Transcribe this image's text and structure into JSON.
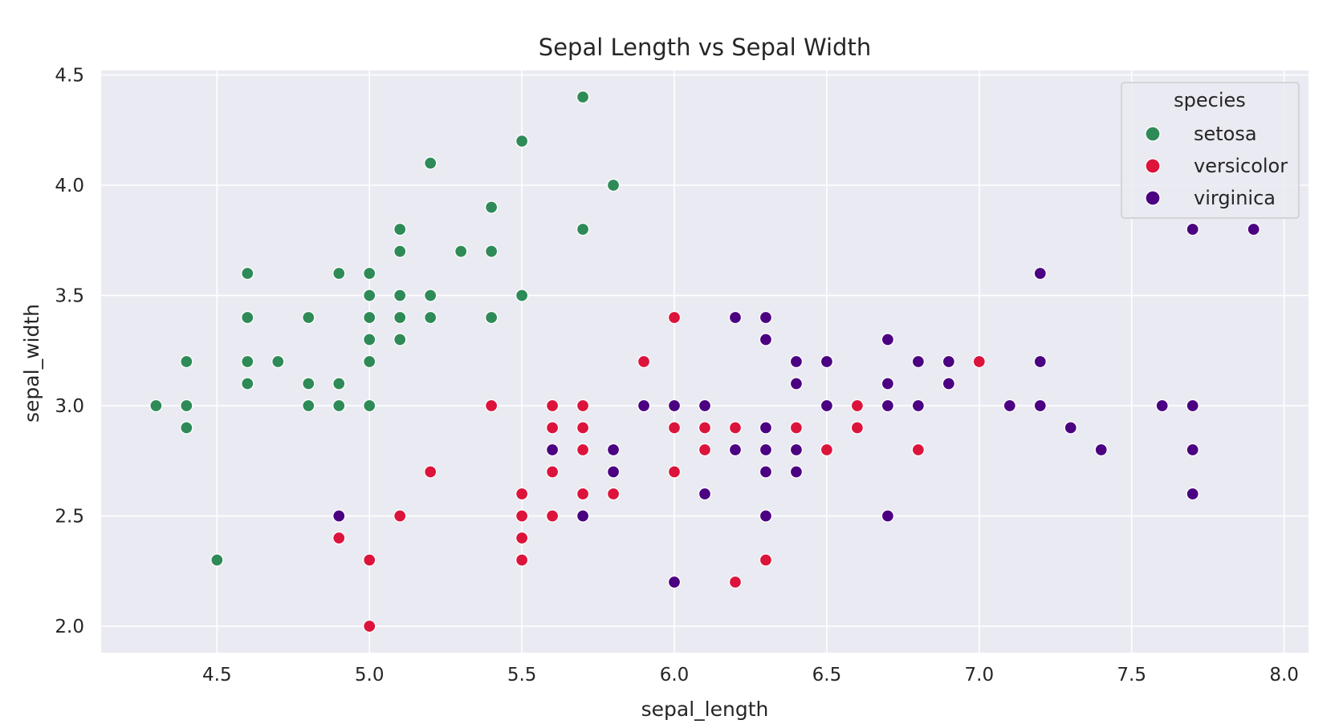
{
  "chart_data": {
    "type": "scatter",
    "title": "Sepal Length vs Sepal Width",
    "xlabel": "sepal_length",
    "ylabel": "sepal_width",
    "xlim": [
      4.12,
      8.08
    ],
    "ylim": [
      1.88,
      4.52
    ],
    "xticks": [
      "4.5",
      "5.0",
      "5.5",
      "6.0",
      "6.5",
      "7.0",
      "7.5",
      "8.0"
    ],
    "yticks": [
      "2.0",
      "2.5",
      "3.0",
      "3.5",
      "4.0",
      "4.5"
    ],
    "grid": true,
    "legend": {
      "title": "species",
      "placement": "upper-right"
    },
    "series": [
      {
        "name": "setosa",
        "color": "#2e8b57",
        "points": [
          [
            5.1,
            3.5
          ],
          [
            4.9,
            3.0
          ],
          [
            4.7,
            3.2
          ],
          [
            4.6,
            3.1
          ],
          [
            5.0,
            3.6
          ],
          [
            5.4,
            3.9
          ],
          [
            4.6,
            3.4
          ],
          [
            5.0,
            3.4
          ],
          [
            4.4,
            2.9
          ],
          [
            4.9,
            3.1
          ],
          [
            5.4,
            3.7
          ],
          [
            4.8,
            3.4
          ],
          [
            4.8,
            3.0
          ],
          [
            4.3,
            3.0
          ],
          [
            5.8,
            4.0
          ],
          [
            5.7,
            4.4
          ],
          [
            5.4,
            3.9
          ],
          [
            5.1,
            3.5
          ],
          [
            5.7,
            3.8
          ],
          [
            5.1,
            3.8
          ],
          [
            5.4,
            3.4
          ],
          [
            5.1,
            3.7
          ],
          [
            4.6,
            3.6
          ],
          [
            5.1,
            3.3
          ],
          [
            4.8,
            3.4
          ],
          [
            5.0,
            3.0
          ],
          [
            5.0,
            3.4
          ],
          [
            5.2,
            3.5
          ],
          [
            5.2,
            3.4
          ],
          [
            4.7,
            3.2
          ],
          [
            4.8,
            3.1
          ],
          [
            5.4,
            3.4
          ],
          [
            5.2,
            4.1
          ],
          [
            5.5,
            4.2
          ],
          [
            4.9,
            3.1
          ],
          [
            5.0,
            3.2
          ],
          [
            5.5,
            3.5
          ],
          [
            4.9,
            3.6
          ],
          [
            4.4,
            3.0
          ],
          [
            5.1,
            3.4
          ],
          [
            5.0,
            3.5
          ],
          [
            4.5,
            2.3
          ],
          [
            4.4,
            3.2
          ],
          [
            5.0,
            3.5
          ],
          [
            5.1,
            3.8
          ],
          [
            4.8,
            3.0
          ],
          [
            5.1,
            3.8
          ],
          [
            4.6,
            3.2
          ],
          [
            5.3,
            3.7
          ],
          [
            5.0,
            3.3
          ]
        ]
      },
      {
        "name": "versicolor",
        "color": "#dc143c",
        "points": [
          [
            7.0,
            3.2
          ],
          [
            6.4,
            3.2
          ],
          [
            6.9,
            3.1
          ],
          [
            5.5,
            2.3
          ],
          [
            6.5,
            2.8
          ],
          [
            5.7,
            2.8
          ],
          [
            6.3,
            3.3
          ],
          [
            4.9,
            2.4
          ],
          [
            6.6,
            2.9
          ],
          [
            5.2,
            2.7
          ],
          [
            5.0,
            2.0
          ],
          [
            5.9,
            3.0
          ],
          [
            6.0,
            2.2
          ],
          [
            6.1,
            2.9
          ],
          [
            5.6,
            2.9
          ],
          [
            6.7,
            3.1
          ],
          [
            5.6,
            3.0
          ],
          [
            5.8,
            2.7
          ],
          [
            6.2,
            2.2
          ],
          [
            5.6,
            2.5
          ],
          [
            5.9,
            3.2
          ],
          [
            6.1,
            2.8
          ],
          [
            6.3,
            2.5
          ],
          [
            6.1,
            2.8
          ],
          [
            6.4,
            2.9
          ],
          [
            6.6,
            3.0
          ],
          [
            6.8,
            2.8
          ],
          [
            6.7,
            3.0
          ],
          [
            6.0,
            2.9
          ],
          [
            5.7,
            2.6
          ],
          [
            5.5,
            2.4
          ],
          [
            5.5,
            2.4
          ],
          [
            5.8,
            2.7
          ],
          [
            6.0,
            2.7
          ],
          [
            5.4,
            3.0
          ],
          [
            6.0,
            3.4
          ],
          [
            6.7,
            3.1
          ],
          [
            6.3,
            2.3
          ],
          [
            5.6,
            3.0
          ],
          [
            5.5,
            2.5
          ],
          [
            5.5,
            2.6
          ],
          [
            6.1,
            3.0
          ],
          [
            5.8,
            2.6
          ],
          [
            5.0,
            2.3
          ],
          [
            5.6,
            2.7
          ],
          [
            5.7,
            3.0
          ],
          [
            5.7,
            2.9
          ],
          [
            6.2,
            2.9
          ],
          [
            5.1,
            2.5
          ],
          [
            5.7,
            2.8
          ]
        ]
      },
      {
        "name": "virginica",
        "color": "#4b0082",
        "points": [
          [
            6.3,
            3.3
          ],
          [
            5.8,
            2.7
          ],
          [
            7.1,
            3.0
          ],
          [
            6.3,
            2.9
          ],
          [
            6.5,
            3.0
          ],
          [
            7.6,
            3.0
          ],
          [
            4.9,
            2.5
          ],
          [
            7.3,
            2.9
          ],
          [
            6.7,
            2.5
          ],
          [
            7.2,
            3.6
          ],
          [
            6.5,
            3.2
          ],
          [
            6.4,
            2.7
          ],
          [
            6.8,
            3.0
          ],
          [
            5.7,
            2.5
          ],
          [
            5.8,
            2.8
          ],
          [
            6.4,
            3.2
          ],
          [
            6.5,
            3.0
          ],
          [
            7.7,
            3.8
          ],
          [
            7.7,
            2.6
          ],
          [
            6.0,
            2.2
          ],
          [
            6.9,
            3.2
          ],
          [
            5.6,
            2.8
          ],
          [
            7.7,
            2.8
          ],
          [
            6.3,
            2.7
          ],
          [
            6.7,
            3.3
          ],
          [
            7.2,
            3.2
          ],
          [
            6.2,
            2.8
          ],
          [
            6.1,
            3.0
          ],
          [
            6.4,
            2.8
          ],
          [
            7.2,
            3.0
          ],
          [
            7.4,
            2.8
          ],
          [
            7.9,
            3.8
          ],
          [
            6.4,
            2.8
          ],
          [
            6.3,
            2.8
          ],
          [
            6.1,
            2.6
          ],
          [
            7.7,
            3.0
          ],
          [
            6.3,
            3.4
          ],
          [
            6.4,
            3.1
          ],
          [
            6.0,
            3.0
          ],
          [
            6.9,
            3.1
          ],
          [
            6.7,
            3.1
          ],
          [
            6.9,
            3.1
          ],
          [
            5.8,
            2.7
          ],
          [
            6.8,
            3.2
          ],
          [
            6.7,
            3.3
          ],
          [
            6.7,
            3.0
          ],
          [
            6.3,
            2.5
          ],
          [
            6.5,
            3.0
          ],
          [
            6.2,
            3.4
          ],
          [
            5.9,
            3.0
          ]
        ]
      }
    ]
  }
}
